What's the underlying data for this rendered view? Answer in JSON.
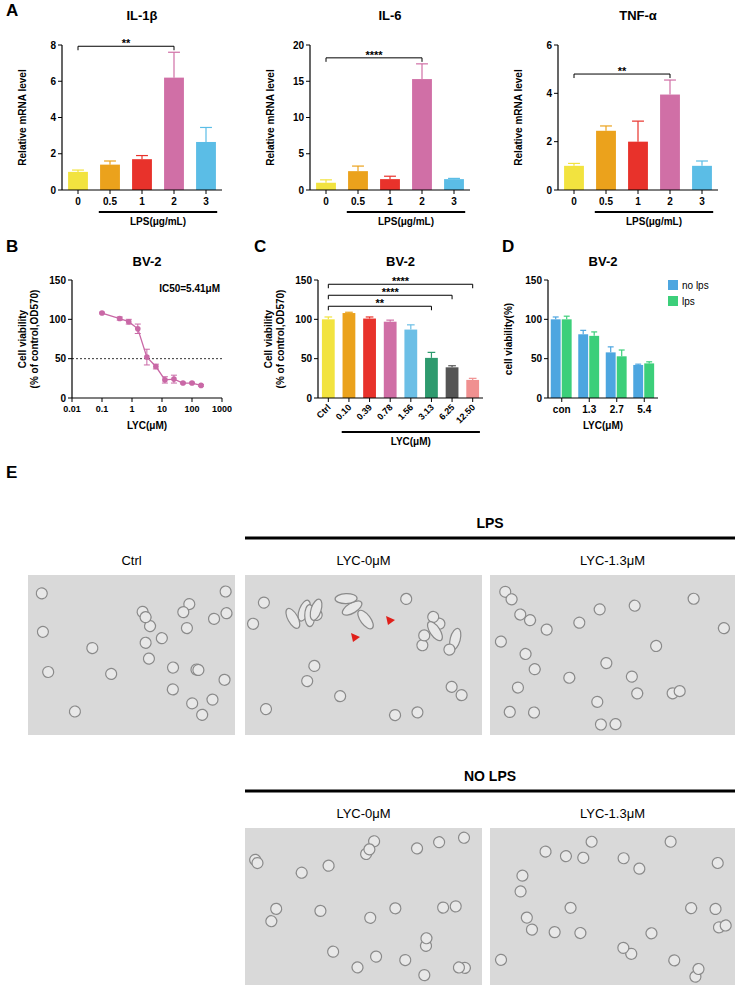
{
  "figure": {
    "panel_labels": [
      "A",
      "B",
      "C",
      "D",
      "E"
    ]
  },
  "chart_data": [
    {
      "type": "bar",
      "title": "IL-1β",
      "categories": [
        "0",
        "0.5",
        "1",
        "2",
        "3"
      ],
      "values": [
        1,
        1.4,
        1.7,
        6.2,
        2.65
      ],
      "errors": [
        0.1,
        0.2,
        0.2,
        1.4,
        0.8
      ],
      "colors": [
        "#f2e33f",
        "#eba21c",
        "#e8322b",
        "#d06fa6",
        "#5bbde6"
      ],
      "ylim": [
        0,
        8
      ],
      "yticks": [
        0,
        2,
        4,
        6,
        8
      ],
      "ylabel": "Relative mRNA level",
      "xlabel": "LPS(μg/mL)",
      "annotations": [
        {
          "from": "0",
          "to": "2",
          "text": "**"
        }
      ]
    },
    {
      "type": "bar",
      "title": "IL-6",
      "categories": [
        "0",
        "0.5",
        "1",
        "2",
        "3"
      ],
      "values": [
        1,
        2.6,
        1.5,
        15.3,
        1.5
      ],
      "errors": [
        0.4,
        0.7,
        0.4,
        2.1,
        0.1
      ],
      "colors": [
        "#f2e33f",
        "#eba21c",
        "#e8322b",
        "#d06fa6",
        "#5bbde6"
      ],
      "ylim": [
        0,
        20
      ],
      "yticks": [
        0,
        5,
        10,
        15,
        20
      ],
      "ylabel": "Relative mRNA level",
      "xlabel": "LPS(μg/mL)",
      "annotations": [
        {
          "from": "0",
          "to": "2",
          "text": "****"
        }
      ]
    },
    {
      "type": "bar",
      "title": "TNF-α",
      "categories": [
        "0",
        "0.5",
        "1",
        "2",
        "3"
      ],
      "values": [
        1,
        2.45,
        2,
        3.95,
        1
      ],
      "errors": [
        0.1,
        0.2,
        0.85,
        0.6,
        0.2
      ],
      "colors": [
        "#f2e33f",
        "#eba21c",
        "#e8322b",
        "#d06fa6",
        "#5bbde6"
      ],
      "ylim": [
        0,
        6
      ],
      "yticks": [
        0,
        2,
        4,
        6
      ],
      "ylabel": "Relative mRNA level",
      "xlabel": "LPS(μg/mL)",
      "annotations": [
        {
          "from": "0",
          "to": "2",
          "text": "**"
        }
      ]
    },
    {
      "type": "line",
      "title": "BV-2",
      "x": [
        0.1,
        0.39,
        0.78,
        1.56,
        3.13,
        6.25,
        12.5,
        25,
        50,
        100,
        200
      ],
      "values": [
        108,
        101,
        97,
        88,
        52,
        40,
        23,
        24,
        19,
        19,
        16
      ],
      "errors": [
        1,
        2,
        3,
        6,
        10,
        3,
        4,
        5,
        1,
        1,
        1
      ],
      "color": "#c968a6",
      "marker": "circle",
      "log": "x",
      "xlim": [
        0.01,
        1000
      ],
      "xticks": [
        0.01,
        0.1,
        1,
        10,
        100,
        1000
      ],
      "ylim": [
        0,
        150
      ],
      "yticks": [
        0,
        50,
        100,
        150
      ],
      "ylabel": [
        "Cell viability",
        "(% of control,OD570)"
      ],
      "xlabel": "LYC(μM)",
      "annotation": "IC50=5.41μM",
      "threshold": 50
    },
    {
      "type": "bar",
      "title": "BV-2",
      "categories": [
        "Ctrl",
        "0.10",
        "0.39",
        "0.78",
        "1.56",
        "3.13",
        "6.25",
        "12.50"
      ],
      "values": [
        100,
        108,
        101,
        97,
        87,
        51,
        39,
        23
      ],
      "errors": [
        3,
        1,
        2,
        2,
        6,
        7,
        2,
        2
      ],
      "colors": [
        "#f2e33f",
        "#eba21c",
        "#e8322b",
        "#d06fa6",
        "#6cbfe6",
        "#2e9a6e",
        "#555555",
        "#f09090"
      ],
      "ylim": [
        0,
        150
      ],
      "yticks": [
        0,
        50,
        100,
        150
      ],
      "ylabel": [
        "Cell viability",
        "(% of control,OD570)"
      ],
      "xlabel": "LYC(μM)",
      "annotations": [
        {
          "from": "Ctrl",
          "to": "3.13",
          "text": "**"
        },
        {
          "from": "Ctrl",
          "to": "6.25",
          "text": "****"
        },
        {
          "from": "Ctrl",
          "to": "12.50",
          "text": "****"
        }
      ]
    },
    {
      "type": "bar",
      "title": "BV-2",
      "categories": [
        "con",
        "1.3",
        "2.7",
        "5.4"
      ],
      "series": [
        {
          "name": "no lps",
          "color": "#4da6e0",
          "values": [
            100,
            81,
            58,
            42
          ],
          "errors": [
            3,
            5,
            7,
            1
          ]
        },
        {
          "name": "lps",
          "color": "#3ccf7a",
          "values": [
            100,
            79,
            53,
            44
          ],
          "errors": [
            4,
            5,
            8,
            2
          ]
        }
      ],
      "ylim": [
        0,
        150
      ],
      "yticks": [
        0,
        50,
        100,
        150
      ],
      "ylabel": "cell viability(%)",
      "xlabel": "LYC(μM)",
      "legend": "right"
    }
  ],
  "micrographs": {
    "groups": [
      {
        "label": "LPS"
      },
      {
        "label": "NO LPS"
      }
    ],
    "images": [
      {
        "label": "Ctrl"
      },
      {
        "label": "LYC-0μM",
        "group": "LPS"
      },
      {
        "label": "LYC-1.3μM",
        "group": "LPS"
      },
      {
        "label": "LYC-0μM",
        "group": "NO LPS"
      },
      {
        "label": "LYC-1.3μM",
        "group": "NO LPS"
      }
    ]
  }
}
